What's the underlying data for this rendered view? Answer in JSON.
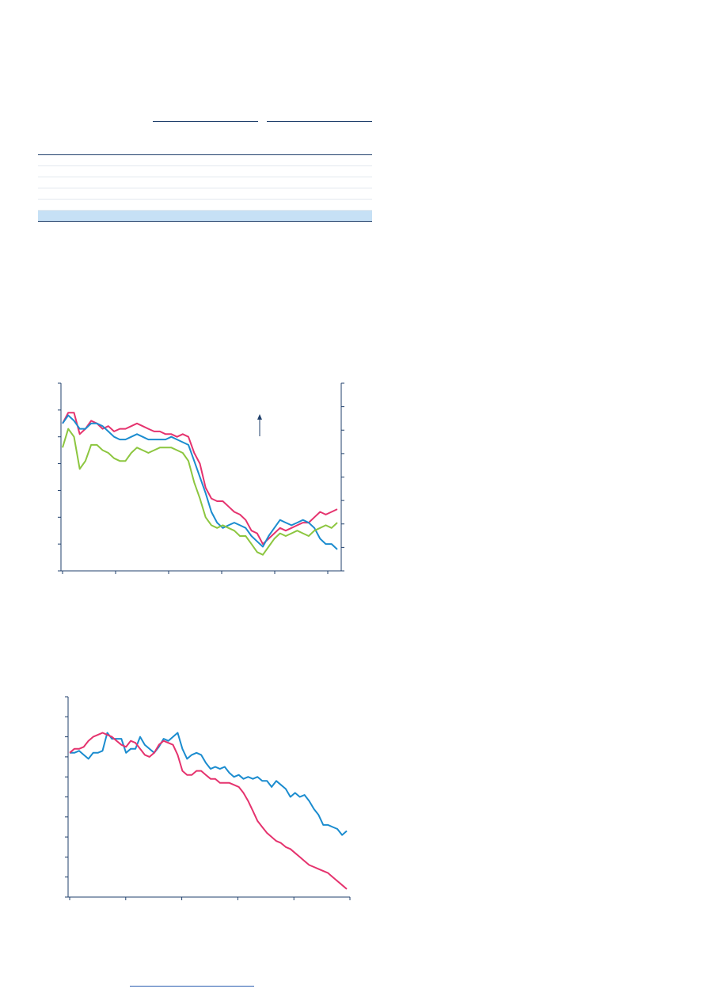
{
  "colors": {
    "series_red": "#e5336e",
    "series_blue": "#1b8ccf",
    "series_green": "#8cc63f",
    "axis": "#1f3f6b",
    "table_highlight": "#c6e0f5"
  },
  "chart_data": [
    {
      "type": "line",
      "title": "",
      "xlabel": "",
      "ylabel": "",
      "x_count": 49,
      "ylim": [
        0,
        7
      ],
      "y_tick_count": 7,
      "y2_tick_count": 9,
      "x_tick_count": 6,
      "annotation": "up-arrow",
      "series": [
        {
          "color_key": "series_red",
          "values": [
            5.5,
            5.9,
            5.9,
            5.1,
            5.3,
            5.6,
            5.5,
            5.3,
            5.4,
            5.2,
            5.3,
            5.3,
            5.4,
            5.5,
            5.4,
            5.3,
            5.2,
            5.2,
            5.1,
            5.1,
            5.0,
            5.1,
            5.0,
            4.4,
            4.0,
            3.1,
            2.7,
            2.6,
            2.6,
            2.4,
            2.2,
            2.1,
            1.9,
            1.5,
            1.4,
            1.0,
            1.2,
            1.4,
            1.6,
            1.5,
            1.6,
            1.7,
            1.8,
            1.8,
            2.0,
            2.2,
            2.1,
            2.2,
            2.3
          ]
        },
        {
          "color_key": "series_blue",
          "values": [
            5.5,
            5.8,
            5.6,
            5.3,
            5.3,
            5.5,
            5.5,
            5.4,
            5.2,
            5.0,
            4.9,
            4.9,
            5.0,
            5.1,
            5.0,
            4.9,
            4.9,
            4.9,
            4.9,
            5.0,
            4.9,
            4.8,
            4.7,
            4.1,
            3.5,
            2.9,
            2.2,
            1.8,
            1.6,
            1.7,
            1.8,
            1.7,
            1.6,
            1.3,
            1.1,
            0.9,
            1.3,
            1.6,
            1.9,
            1.8,
            1.7,
            1.8,
            1.9,
            1.8,
            1.6,
            1.2,
            1.0,
            1.0,
            0.8
          ]
        },
        {
          "color_key": "series_green",
          "values": [
            4.6,
            5.3,
            5.0,
            3.8,
            4.1,
            4.7,
            4.7,
            4.5,
            4.4,
            4.2,
            4.1,
            4.1,
            4.4,
            4.6,
            4.5,
            4.4,
            4.5,
            4.6,
            4.6,
            4.6,
            4.5,
            4.4,
            4.1,
            3.3,
            2.7,
            2.0,
            1.7,
            1.6,
            1.7,
            1.6,
            1.5,
            1.3,
            1.3,
            1.0,
            0.7,
            0.6,
            0.9,
            1.2,
            1.4,
            1.3,
            1.4,
            1.5,
            1.4,
            1.3,
            1.5,
            1.6,
            1.7,
            1.6,
            1.8
          ]
        }
      ]
    },
    {
      "type": "line",
      "title": "",
      "xlabel": "",
      "ylabel": "",
      "x_count": 60,
      "ylim": [
        0,
        10
      ],
      "y_tick_count": 10,
      "x_tick_count": 6,
      "series": [
        {
          "color_key": "series_blue",
          "values": [
            7.2,
            7.2,
            7.3,
            7.1,
            6.9,
            7.2,
            7.2,
            7.3,
            8.2,
            7.9,
            7.9,
            7.9,
            7.2,
            7.4,
            7.4,
            8.0,
            7.6,
            7.4,
            7.2,
            7.5,
            7.9,
            7.8,
            8.0,
            8.2,
            7.4,
            6.9,
            7.1,
            7.2,
            7.1,
            6.7,
            6.4,
            6.5,
            6.4,
            6.5,
            6.2,
            6.0,
            6.1,
            5.9,
            6.0,
            5.9,
            6.0,
            5.8,
            5.8,
            5.5,
            5.8,
            5.6,
            5.4,
            5.0,
            5.2,
            5.0,
            5.1,
            4.8,
            4.4,
            4.1,
            3.6,
            3.6,
            3.5,
            3.4,
            3.1,
            3.3
          ]
        },
        {
          "color_key": "series_red",
          "values": [
            7.2,
            7.4,
            7.4,
            7.5,
            7.8,
            8.0,
            8.1,
            8.2,
            8.1,
            8.0,
            7.8,
            7.6,
            7.5,
            7.8,
            7.7,
            7.4,
            7.1,
            7.0,
            7.2,
            7.6,
            7.8,
            7.7,
            7.6,
            7.1,
            6.3,
            6.1,
            6.1,
            6.3,
            6.3,
            6.1,
            5.9,
            5.9,
            5.7,
            5.7,
            5.7,
            5.6,
            5.5,
            5.2,
            4.8,
            4.3,
            3.8,
            3.5,
            3.2,
            3.0,
            2.8,
            2.7,
            2.5,
            2.4,
            2.2,
            2.0,
            1.8,
            1.6,
            1.5,
            1.4,
            1.3,
            1.2,
            1.0,
            0.8,
            0.6,
            0.4
          ]
        }
      ]
    }
  ]
}
